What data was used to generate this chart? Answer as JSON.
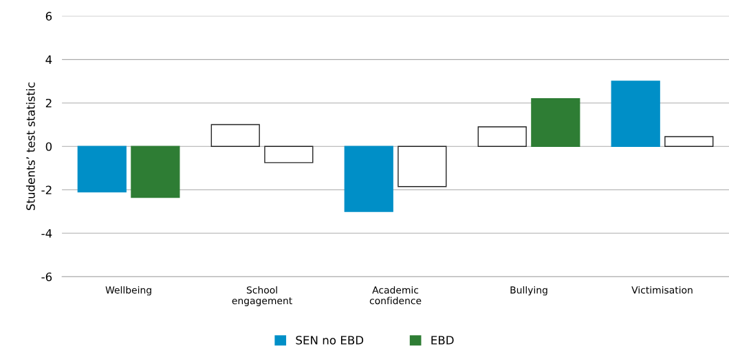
{
  "chart_data": {
    "type": "bar",
    "ylabel": "Students’ test statistic",
    "categories": [
      "Wellbeing",
      "School\nengagement",
      "Academic\nconfidence",
      "Bullying",
      "Victimisation"
    ],
    "series": [
      {
        "name": "SEN no EBD",
        "color": "#008fc7",
        "colors": [
          "#008fc7",
          "#ffffff",
          "#008fc7",
          "#ffffff",
          "#008fc7"
        ],
        "values": [
          -2.1,
          1.0,
          -3.0,
          0.9,
          3.0
        ]
      },
      {
        "name": "EBD",
        "color": "#2e7d34",
        "colors": [
          "#2e7d34",
          "#ffffff",
          "#ffffff",
          "#2e7d34",
          "#ffffff"
        ],
        "values": [
          -2.35,
          -0.75,
          -1.85,
          2.2,
          0.45
        ]
      }
    ],
    "ylim": [
      -6,
      6
    ],
    "yticks": [
      -6,
      -4,
      -2,
      0,
      2,
      4,
      6
    ],
    "grid": "y",
    "legend": "bottom"
  }
}
